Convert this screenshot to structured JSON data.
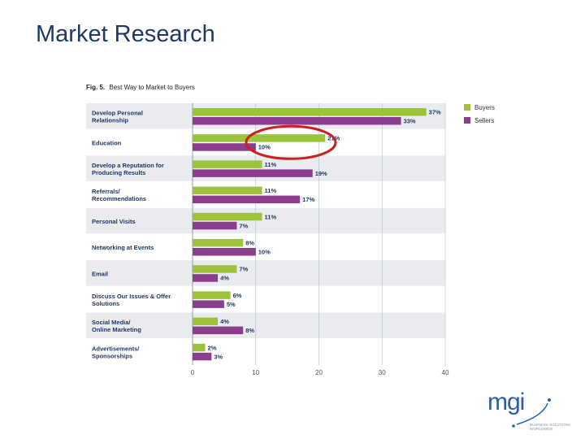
{
  "slide": {
    "title": "Market Research"
  },
  "figure": {
    "caption_prefix": "Fig. 5.",
    "caption_text": "Best Way to Market to Buyers"
  },
  "colors": {
    "buyers": "#9bc43a",
    "sellers": "#8b3d8e",
    "band": "#e9ebee",
    "annotation": "#cc1f1f"
  },
  "chart_data": {
    "type": "bar",
    "orientation": "horizontal",
    "categories": [
      "Develop Personal\nRelationship",
      "Education",
      "Develop a Reputation for\nProducing Results",
      "Referrals/\nRecommendations",
      "Personal Visits",
      "Networking at Events",
      "Email",
      "Discuss Our Issues & Offer\nSolutions",
      "Social Media/\nOnline Marketing",
      "Advertisements/\nSponsorships"
    ],
    "series": [
      {
        "name": "Buyers",
        "values": [
          37,
          21,
          11,
          11,
          11,
          8,
          7,
          6,
          4,
          2
        ]
      },
      {
        "name": "Sellers",
        "values": [
          33,
          10,
          19,
          17,
          7,
          10,
          4,
          5,
          8,
          3
        ]
      }
    ],
    "value_labels": {
      "Buyers": [
        "37%",
        "21%",
        "11%",
        "11%",
        "11%",
        "8%",
        "7%",
        "6%",
        "4%",
        "2%"
      ],
      "Sellers": [
        "33%",
        "10%",
        "19%",
        "17%",
        "7%",
        "10%",
        "4%",
        "5%",
        "8%",
        "3%"
      ]
    },
    "xticks": [
      0,
      10,
      20,
      30,
      40
    ],
    "xlim": [
      0,
      40
    ],
    "grid": true,
    "legend": "top-right",
    "annotation": "red ellipse highlighting Education buyers bar"
  },
  "logo": {
    "text": "mgi",
    "tagline": "BUSINESS SOLUTIONS WORLDWIDE"
  }
}
